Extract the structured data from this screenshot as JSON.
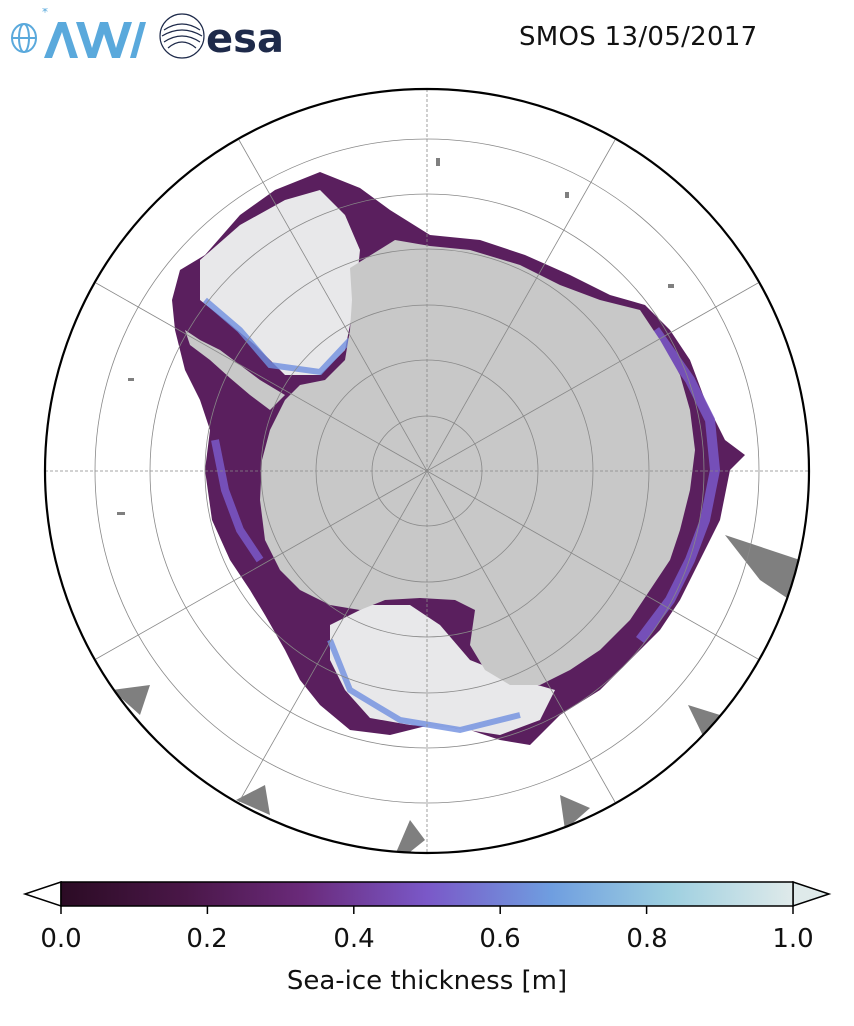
{
  "header": {
    "awi_logo_text": "AWI",
    "esa_logo_text": "esa",
    "title": "SMOS 13/05/2017"
  },
  "map": {
    "projection": "south-polar-stereographic",
    "graticule": "on",
    "colors": {
      "land": "#c8c8c8",
      "land_mask_ocean": "#7f7f7f",
      "ocean": "#ffffff",
      "graticule": "#888888"
    }
  },
  "colorbar": {
    "label": "Sea-ice thickness [m]",
    "range": [
      0.0,
      1.0
    ],
    "extend": "both",
    "ticks": [
      {
        "label": "0.0",
        "value": 0.0
      },
      {
        "label": "0.2",
        "value": 0.2
      },
      {
        "label": "0.4",
        "value": 0.4
      },
      {
        "label": "0.6",
        "value": 0.6
      },
      {
        "label": "0.8",
        "value": 0.8
      },
      {
        "label": "1.0",
        "value": 1.0
      }
    ],
    "colormap": [
      "#2b0b24",
      "#4a1748",
      "#6a2a7a",
      "#7a58c8",
      "#6f9ee0",
      "#9dcfe0",
      "#dfeaea"
    ]
  }
}
